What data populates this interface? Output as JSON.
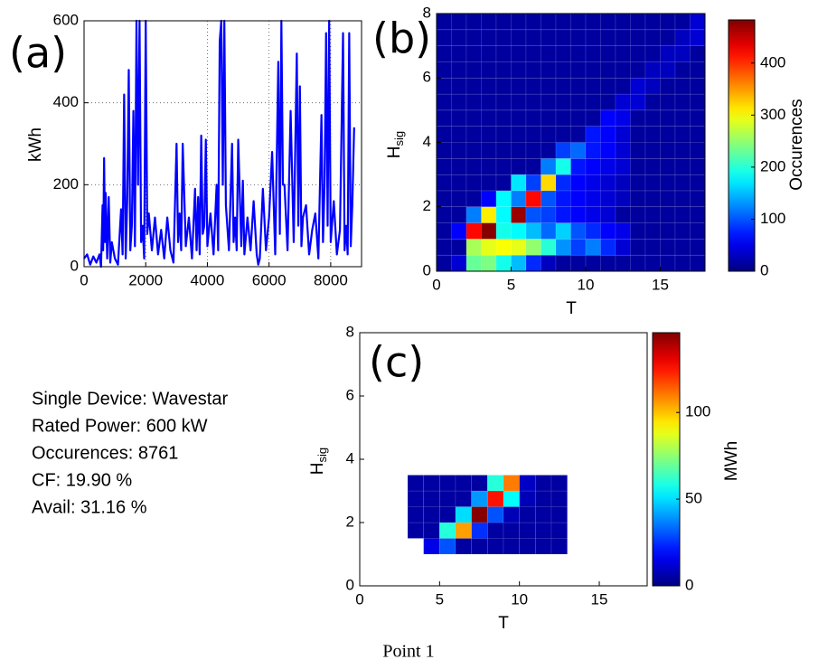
{
  "chart_data": [
    {
      "type": "line",
      "panel_label": "(a)",
      "ylabel": "kWh",
      "x": [
        0,
        100,
        200,
        300,
        400,
        500,
        550,
        600,
        620,
        650,
        680,
        700,
        750,
        800,
        850,
        900,
        1000,
        1100,
        1200,
        1250,
        1300,
        1350,
        1400,
        1450,
        1500,
        1550,
        1600,
        1650,
        1700,
        1750,
        1800,
        1850,
        1900,
        1950,
        2000,
        2050,
        2100,
        2200,
        2300,
        2400,
        2500,
        2600,
        2700,
        2800,
        2900,
        3000,
        3050,
        3100,
        3150,
        3200,
        3300,
        3400,
        3500,
        3600,
        3650,
        3700,
        3750,
        3800,
        3850,
        3900,
        3950,
        4000,
        4100,
        4200,
        4300,
        4350,
        4400,
        4450,
        4500,
        4550,
        4600,
        4700,
        4800,
        4850,
        4900,
        4950,
        5000,
        5100,
        5150,
        5200,
        5300,
        5400,
        5500,
        5600,
        5650,
        5700,
        5800,
        5900,
        6000,
        6100,
        6200,
        6300,
        6350,
        6400,
        6450,
        6500,
        6600,
        6700,
        6800,
        6900,
        6950,
        7000,
        7050,
        7100,
        7200,
        7300,
        7400,
        7500,
        7600,
        7700,
        7750,
        7800,
        7850,
        7900,
        7950,
        8000,
        8100,
        8200,
        8300,
        8400,
        8450,
        8500,
        8550,
        8600,
        8650,
        8700,
        8760
      ],
      "series": [
        {
          "color": "#0000ff",
          "values": [
            20,
            30,
            5,
            25,
            10,
            30,
            0,
            150,
            40,
            265,
            60,
            180,
            20,
            170,
            10,
            60,
            20,
            5,
            140,
            30,
            420,
            20,
            160,
            480,
            40,
            100,
            380,
            50,
            600,
            200,
            600,
            60,
            100,
            20,
            600,
            80,
            130,
            40,
            120,
            30,
            90,
            20,
            120,
            40,
            10,
            300,
            60,
            130,
            40,
            300,
            50,
            120,
            20,
            190,
            40,
            170,
            30,
            320,
            80,
            100,
            310,
            50,
            130,
            30,
            200,
            40,
            550,
            600,
            200,
            600,
            150,
            40,
            300,
            60,
            120,
            40,
            310,
            50,
            210,
            30,
            120,
            40,
            160,
            30,
            5,
            20,
            190,
            40,
            120,
            280,
            30,
            500,
            80,
            600,
            200,
            200,
            40,
            380,
            60,
            520,
            100,
            440,
            50,
            120,
            150,
            30,
            90,
            130,
            20,
            370,
            60,
            200,
            570,
            100,
            600,
            60,
            160,
            30,
            90,
            570,
            40,
            100,
            30,
            570,
            50,
            150,
            340
          ]
        }
      ],
      "xlim": [
        0,
        9000
      ],
      "ylim": [
        0,
        600
      ],
      "xticks": [
        0,
        2000,
        4000,
        6000,
        8000
      ],
      "yticks": [
        0,
        200,
        400,
        600
      ],
      "grid": true
    },
    {
      "type": "heatmap",
      "panel_label": "(b)",
      "xlabel": "T",
      "ylabel": "H",
      "ylabel_sub": "sig",
      "cbar_label": "Occurences",
      "x_edges": [
        0,
        1,
        2,
        3,
        4,
        5,
        6,
        7,
        8,
        9,
        10,
        11,
        12,
        13,
        14,
        15,
        16,
        17,
        18
      ],
      "y_edges": [
        0,
        0.5,
        1,
        1.5,
        2,
        2.5,
        3,
        3.5,
        4,
        4.5,
        5,
        5.5,
        6,
        6.5,
        7,
        7.5,
        8
      ],
      "z": [
        [
          15,
          40,
          230,
          240,
          190,
          150,
          80,
          30,
          15,
          15,
          15,
          15,
          15,
          15,
          15,
          15,
          15,
          15
        ],
        [
          15,
          15,
          260,
          290,
          300,
          290,
          250,
          200,
          130,
          90,
          120,
          80,
          40,
          15,
          15,
          15,
          15,
          15
        ],
        [
          15,
          60,
          420,
          480,
          190,
          180,
          150,
          110,
          160,
          100,
          80,
          60,
          50,
          15,
          15,
          15,
          15,
          15
        ],
        [
          15,
          15,
          120,
          310,
          180,
          470,
          100,
          90,
          70,
          60,
          50,
          40,
          15,
          15,
          15,
          15,
          15,
          15
        ],
        [
          15,
          15,
          15,
          60,
          180,
          120,
          420,
          100,
          70,
          60,
          50,
          40,
          30,
          15,
          15,
          15,
          15,
          15
        ],
        [
          15,
          15,
          15,
          15,
          15,
          170,
          90,
          320,
          80,
          60,
          50,
          40,
          30,
          15,
          15,
          15,
          15,
          15
        ],
        [
          15,
          15,
          15,
          15,
          15,
          15,
          15,
          120,
          190,
          70,
          60,
          50,
          40,
          15,
          15,
          15,
          15,
          15
        ],
        [
          15,
          15,
          15,
          15,
          15,
          15,
          15,
          15,
          90,
          110,
          70,
          60,
          40,
          15,
          15,
          15,
          15,
          15
        ],
        [
          15,
          15,
          15,
          15,
          15,
          15,
          15,
          15,
          15,
          15,
          70,
          60,
          40,
          15,
          15,
          15,
          15,
          15
        ],
        [
          15,
          15,
          15,
          15,
          15,
          15,
          15,
          15,
          15,
          15,
          15,
          60,
          50,
          15,
          15,
          15,
          15,
          15
        ],
        [
          15,
          15,
          15,
          15,
          15,
          15,
          15,
          15,
          15,
          15,
          15,
          15,
          40,
          40,
          15,
          15,
          15,
          15
        ],
        [
          15,
          15,
          15,
          15,
          15,
          15,
          15,
          15,
          15,
          15,
          15,
          15,
          15,
          40,
          30,
          15,
          15,
          15
        ],
        [
          15,
          15,
          15,
          15,
          15,
          15,
          15,
          15,
          15,
          15,
          15,
          15,
          15,
          15,
          30,
          30,
          15,
          15
        ],
        [
          15,
          15,
          15,
          15,
          15,
          15,
          15,
          15,
          15,
          15,
          15,
          15,
          15,
          15,
          15,
          30,
          30,
          15
        ],
        [
          15,
          15,
          15,
          15,
          15,
          15,
          15,
          15,
          15,
          15,
          15,
          15,
          15,
          15,
          15,
          15,
          30,
          40
        ],
        [
          15,
          15,
          15,
          15,
          15,
          15,
          15,
          15,
          15,
          15,
          15,
          15,
          15,
          15,
          15,
          15,
          15,
          40
        ]
      ],
      "xlim": [
        0,
        18
      ],
      "ylim": [
        0,
        8
      ],
      "xticks": [
        0,
        5,
        10,
        15
      ],
      "yticks": [
        0,
        2,
        4,
        6,
        8
      ],
      "clim": [
        0,
        483
      ],
      "cbar_ticks": [
        0,
        100,
        200,
        300,
        400
      ]
    },
    {
      "type": "heatmap",
      "panel_label": "(c)",
      "xlabel": "T",
      "ylabel": "H",
      "ylabel_sub": "sig",
      "cbar_label": "MWh",
      "x_edges": [
        3,
        4,
        5,
        6,
        7,
        8,
        9,
        10,
        11,
        12,
        13
      ],
      "y_edges": [
        1,
        1.5,
        2,
        2.5,
        3,
        3.5
      ],
      "z": [
        [
          null,
          15,
          30,
          5,
          5,
          5,
          5,
          5,
          5,
          5
        ],
        [
          5,
          5,
          60,
          105,
          25,
          5,
          5,
          5,
          5,
          5
        ],
        [
          5,
          5,
          5,
          50,
          145,
          30,
          8,
          5,
          5,
          5
        ],
        [
          5,
          5,
          5,
          5,
          40,
          125,
          55,
          8,
          5,
          5
        ],
        [
          5,
          5,
          5,
          5,
          5,
          60,
          110,
          10,
          5,
          5
        ]
      ],
      "xlim": [
        0,
        18
      ],
      "ylim": [
        0,
        8
      ],
      "xticks": [
        0,
        5,
        10,
        15
      ],
      "yticks": [
        0,
        2,
        4,
        6,
        8
      ],
      "clim": [
        0,
        146
      ],
      "cbar_ticks": [
        0,
        50,
        100
      ]
    }
  ],
  "info": [
    "Single Device:  Wavestar",
    "Rated Power: 600 kW",
    "Occurences: 8761",
    "CF: 19.90 %",
    "Avail: 31.16 %"
  ],
  "caption": "Point 1"
}
